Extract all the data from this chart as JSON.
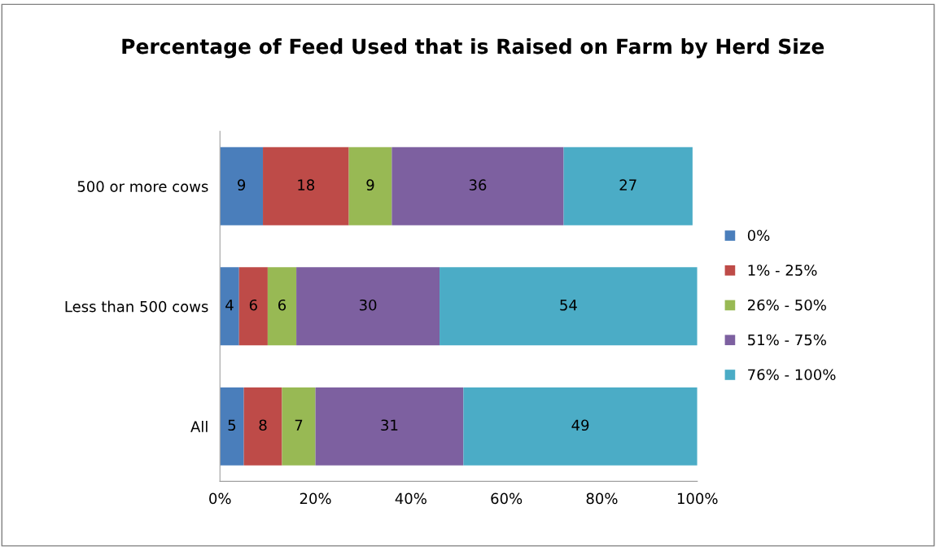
{
  "chart_data": {
    "type": "bar",
    "orientation": "horizontal",
    "stacked": true,
    "title": "Percentage of Feed Used that is Raised on Farm by Herd Size",
    "categories": [
      "500 or more cows",
      "Less than 500 cows",
      "All"
    ],
    "series": [
      {
        "name": "0%",
        "color": "#4a7ebb",
        "values": [
          9,
          4,
          5
        ]
      },
      {
        "name": "1% - 25%",
        "color": "#be4b48",
        "values": [
          18,
          6,
          8
        ]
      },
      {
        "name": "26% - 50%",
        "color": "#98b954",
        "values": [
          9,
          6,
          7
        ]
      },
      {
        "name": "51% - 75%",
        "color": "#7d60a0",
        "values": [
          36,
          30,
          31
        ]
      },
      {
        "name": "76% - 100%",
        "color": "#4bacc6",
        "values": [
          27,
          54,
          49
        ]
      }
    ],
    "xlim": [
      0,
      100
    ],
    "xticks": [
      {
        "value": 0,
        "label": "0%"
      },
      {
        "value": 20,
        "label": "20%"
      },
      {
        "value": 40,
        "label": "40%"
      },
      {
        "value": 60,
        "label": "60%"
      },
      {
        "value": 80,
        "label": "80%"
      },
      {
        "value": 100,
        "label": "100%"
      }
    ],
    "data_labels": true,
    "legend": "right",
    "grid": false
  }
}
